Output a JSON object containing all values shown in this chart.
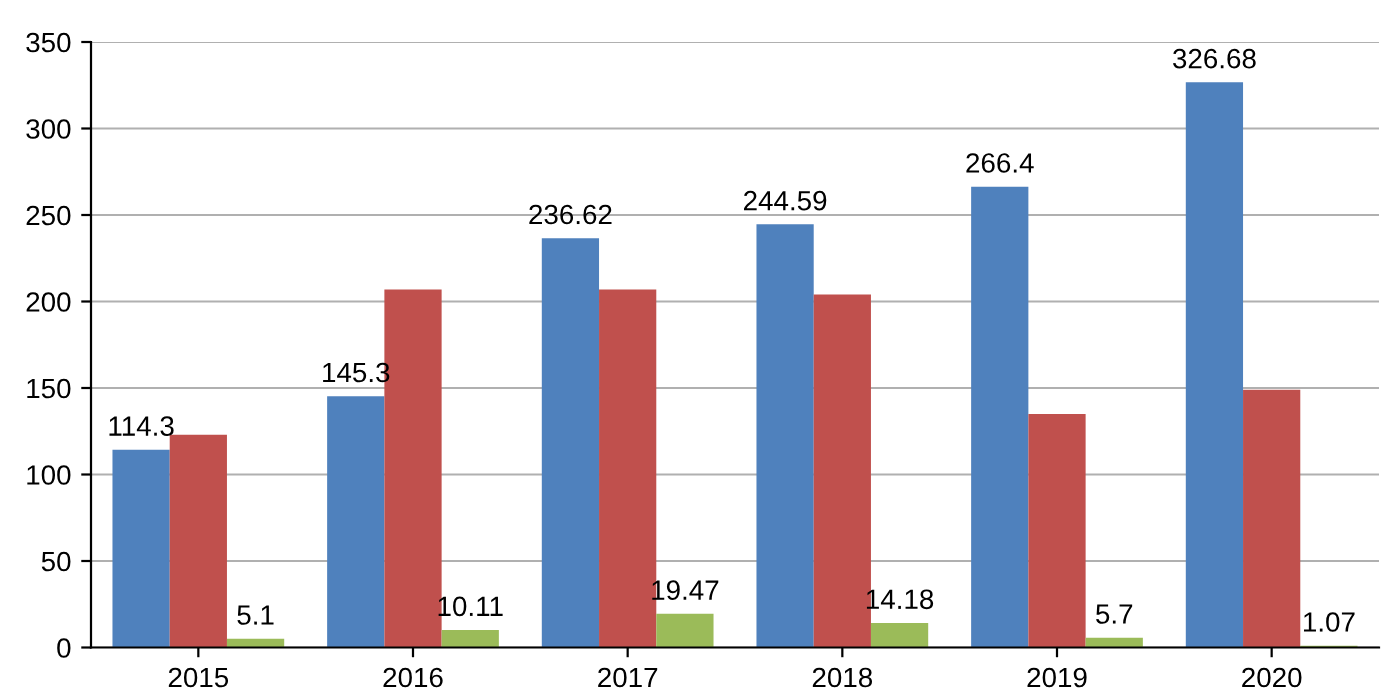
{
  "chart_data": {
    "type": "bar",
    "categories": [
      "2015",
      "2016",
      "2017",
      "2018",
      "2019",
      "2020"
    ],
    "series": [
      {
        "color": "#4f81bd",
        "values": [
          114.3,
          145.3,
          236.62,
          244.59,
          266.4,
          326.68
        ],
        "value_labels": [
          "114.3",
          "145.3",
          "236.62",
          "244.59",
          "266.4",
          "326.68"
        ]
      },
      {
        "color": "#c0504d",
        "values": [
          123,
          207,
          207,
          204,
          135,
          149
        ]
      },
      {
        "color": "#9bbb59",
        "values": [
          5.1,
          10.11,
          19.47,
          14.18,
          5.7,
          1.07
        ],
        "value_labels": [
          "5.1",
          "10.11",
          "19.47",
          "14.18",
          "5.7",
          "1.07"
        ]
      }
    ],
    "ylim": [
      0,
      350
    ],
    "yticks": [
      0,
      50,
      100,
      150,
      200,
      250,
      300,
      350
    ],
    "grid": "y"
  }
}
